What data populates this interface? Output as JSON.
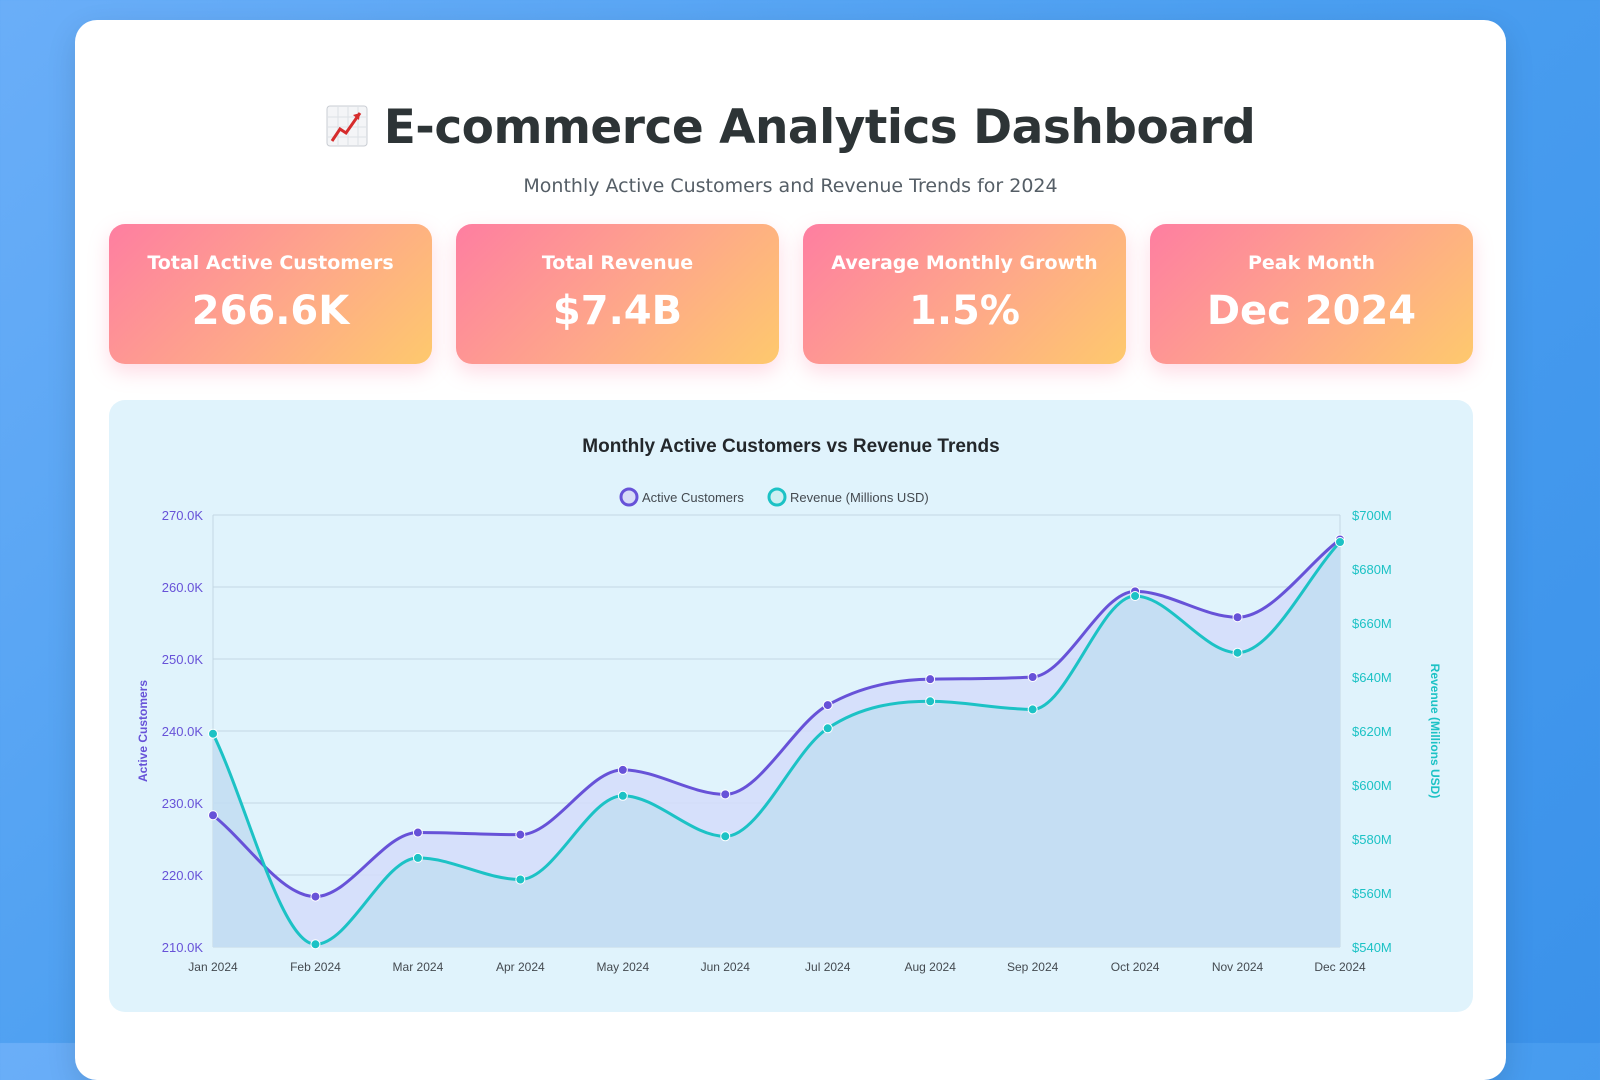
{
  "header": {
    "icon": "chart-increasing-icon",
    "title": "E-commerce Analytics Dashboard",
    "subtitle": "Monthly Active Customers and Revenue Trends for 2024"
  },
  "stats": [
    {
      "label": "Total Active Customers",
      "value": "266.6K"
    },
    {
      "label": "Total Revenue",
      "value": "$7.4B"
    },
    {
      "label": "Average Monthly Growth",
      "value": "1.5%"
    },
    {
      "label": "Peak Month",
      "value": "Dec 2024"
    }
  ],
  "colors": {
    "customers": "#6752d8",
    "revenue": "#1cc2c5",
    "card_gradient": [
      "#fe7ea1",
      "#fec96d"
    ]
  },
  "chart_data": {
    "type": "line",
    "title": "Monthly Active Customers vs Revenue Trends",
    "categories": [
      "Jan 2024",
      "Feb 2024",
      "Mar 2024",
      "Apr 2024",
      "May 2024",
      "Jun 2024",
      "Jul 2024",
      "Aug 2024",
      "Sep 2024",
      "Oct 2024",
      "Nov 2024",
      "Dec 2024"
    ],
    "series": [
      {
        "name": "Active Customers",
        "axis": "left",
        "values": [
          228.3,
          217.0,
          225.9,
          225.6,
          234.6,
          231.2,
          243.6,
          247.2,
          247.5,
          259.4,
          255.8,
          266.6
        ],
        "color": "#6752d8",
        "fill": "#d3dcfa"
      },
      {
        "name": "Revenue (Millions USD)",
        "axis": "right",
        "values": [
          619,
          541,
          573,
          565,
          596,
          581,
          621,
          631,
          628,
          670,
          649,
          690
        ],
        "color": "#1cc2c5",
        "fill": "#c3def2"
      }
    ],
    "y_left": {
      "label": "Active Customers",
      "ylim": [
        210,
        270
      ],
      "ticks": [
        "270.0K",
        "260.0K",
        "250.0K",
        "240.0K",
        "230.0K",
        "220.0K",
        "210.0K"
      ]
    },
    "y_right": {
      "label": "Revenue (Millions USD)",
      "ylim": [
        540,
        700
      ],
      "ticks": [
        "$700M",
        "$680M",
        "$660M",
        "$640M",
        "$620M",
        "$600M",
        "$580M",
        "$560M",
        "$540M"
      ]
    },
    "legend": "top-center",
    "grid": true
  }
}
